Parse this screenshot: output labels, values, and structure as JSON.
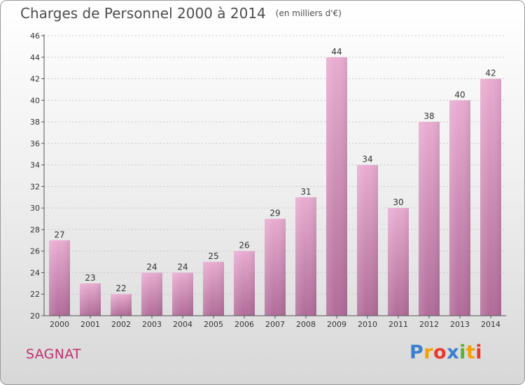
{
  "title": "Charges de Personnel 2000 à 2014",
  "subtitle": "(en milliers d'€)",
  "commune": "SAGNAT",
  "logo": {
    "text": "Proxiti",
    "letters": [
      {
        "char": "P",
        "color": "#3a7fd0"
      },
      {
        "char": "r",
        "color": "#f5a000"
      },
      {
        "char": "o",
        "color": "#e83a2a"
      },
      {
        "char": "x",
        "color": "#3a7fd0"
      },
      {
        "char": "i",
        "color": "#5cb030"
      },
      {
        "char": "t",
        "color": "#f5a000"
      },
      {
        "char": "i",
        "color": "#e83a2a"
      }
    ]
  },
  "colors": {
    "bar_light": "#e8acd0",
    "bar_dark": "#b06c98",
    "axis": "#555555",
    "grid": "#c8c8c8",
    "text": "#333333"
  },
  "chart_data": {
    "type": "bar",
    "title": "Charges de Personnel 2000 à 2014",
    "xlabel": "",
    "ylabel": "(en milliers d'€)",
    "categories": [
      "2000",
      "2001",
      "2002",
      "2003",
      "2004",
      "2005",
      "2006",
      "2007",
      "2008",
      "2009",
      "2010",
      "2011",
      "2012",
      "2013",
      "2014"
    ],
    "values": [
      27,
      23,
      22,
      24,
      24,
      25,
      26,
      29,
      31,
      44,
      34,
      30,
      38,
      40,
      42
    ],
    "ylim": [
      20,
      46
    ],
    "yticks": [
      20,
      22,
      24,
      26,
      28,
      30,
      32,
      34,
      36,
      38,
      40,
      42,
      44,
      46
    ],
    "grid": true
  }
}
